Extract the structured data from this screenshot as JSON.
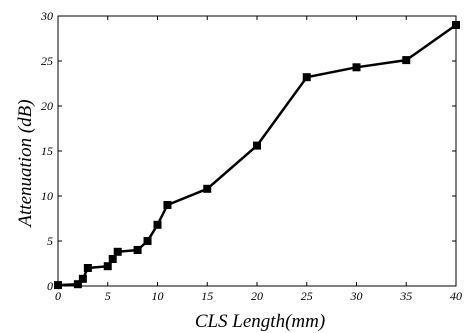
{
  "chart_data": {
    "type": "line",
    "title": "",
    "xlabel": "CLS Length(mm)",
    "ylabel": "Attenuation (dB)",
    "xlim": [
      0,
      40
    ],
    "ylim": [
      0,
      30
    ],
    "x_ticks": [
      0,
      5,
      10,
      15,
      20,
      25,
      30,
      35,
      40
    ],
    "y_ticks": [
      0,
      5,
      10,
      15,
      20,
      25,
      30
    ],
    "grid": false,
    "legend": "none",
    "series": [
      {
        "marker": "square",
        "color": "#000000",
        "points": [
          {
            "x": 0,
            "y": 0.1
          },
          {
            "x": 2,
            "y": 0.2
          },
          {
            "x": 2.5,
            "y": 0.8
          },
          {
            "x": 3,
            "y": 2.0
          },
          {
            "x": 5,
            "y": 2.2
          },
          {
            "x": 5.5,
            "y": 3.0
          },
          {
            "x": 6,
            "y": 3.8
          },
          {
            "x": 8,
            "y": 4.0
          },
          {
            "x": 9,
            "y": 5.0
          },
          {
            "x": 10,
            "y": 6.8
          },
          {
            "x": 11,
            "y": 9.0
          },
          {
            "x": 15,
            "y": 10.8
          },
          {
            "x": 20,
            "y": 15.6
          },
          {
            "x": 25,
            "y": 23.2
          },
          {
            "x": 30,
            "y": 24.3
          },
          {
            "x": 35,
            "y": 25.1
          },
          {
            "x": 40,
            "y": 29.0
          }
        ]
      }
    ]
  }
}
